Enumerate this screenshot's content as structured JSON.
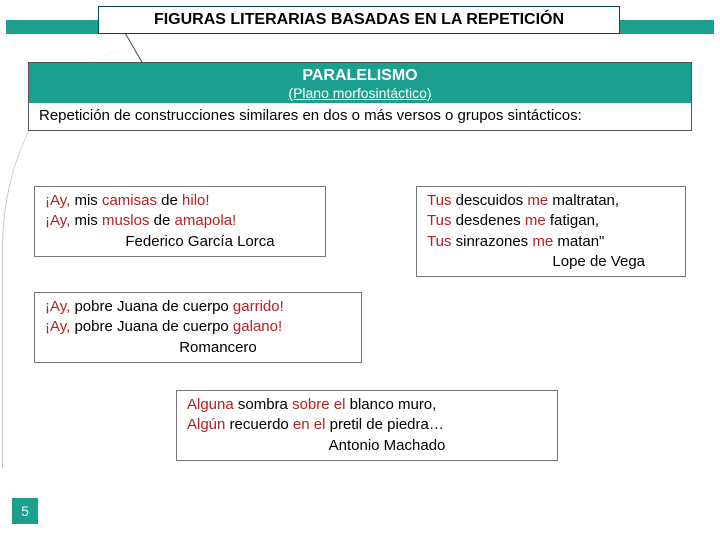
{
  "colors": {
    "teal": "#1ba08e",
    "highlight": "#b22222",
    "text": "#000000",
    "bg": "#ffffff"
  },
  "title": "FIGURAS LITERARIAS BASADAS EN LA REPETICIÓN",
  "definition": {
    "name": "PARALELISMO",
    "plane": "(Plano morfosintáctico)",
    "text": "Repetición de construcciones similares en dos o más versos o grupos sintácticos:"
  },
  "examples": {
    "ex1": {
      "l1a": "¡Ay,",
      "l1b": " mis ",
      "l1c": "camisas",
      "l1d": " de ",
      "l1e": "hilo!",
      "l2a": "¡Ay,",
      "l2b": " mis ",
      "l2c": "muslos",
      "l2d": " de ",
      "l2e": "amapola!",
      "author": "Federico García Lorca"
    },
    "ex2": {
      "l1a": "Tus ",
      "l1b": "descuidos",
      "l1c": " me ",
      "l1d": "maltratan,",
      "l2a": "Tus ",
      "l2b": "desdenes",
      "l2c": " me ",
      "l2d": "fatigan,",
      "l3a": "Tus ",
      "l3b": "sinrazones",
      "l3c": " me ",
      "l3d": "matan\"",
      "author": "Lope de Vega"
    },
    "ex3": {
      "l1a": "¡Ay,",
      "l1b": " pobre Juana de cuerpo ",
      "l1c": "garrido!",
      "l2a": "¡Ay,",
      "l2b": " pobre Juana de cuerpo ",
      "l2c": "galano!",
      "author": "Romancero"
    },
    "ex4": {
      "l1a": "Alguna ",
      "l1b": "sombra",
      "l1c": " sobre el ",
      "l1d": "blanco muro,",
      "l2a": "Algún ",
      "l2b": "recuerdo",
      "l2c": " en el ",
      "l2d": "pretil de piedra…",
      "author": "Antonio Machado"
    }
  },
  "page": "5"
}
